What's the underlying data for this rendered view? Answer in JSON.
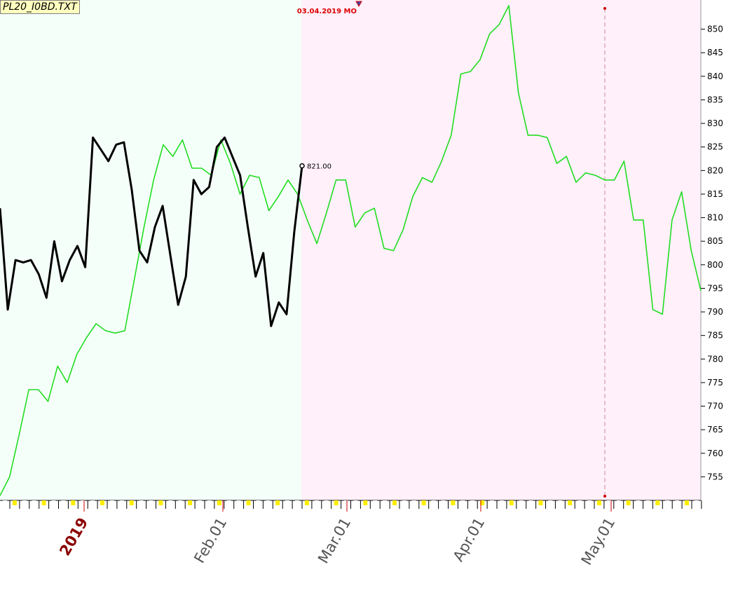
{
  "file_tag": "PL20_I0BD.TXT",
  "chart_data": {
    "type": "line",
    "ylim": [
      750,
      855
    ],
    "y_ticks": [
      755,
      760,
      765,
      770,
      775,
      780,
      785,
      790,
      795,
      800,
      805,
      810,
      815,
      820,
      825,
      830,
      835,
      840,
      845,
      850
    ],
    "x_labels": [
      {
        "text": "2019",
        "date": "2019-01-01",
        "style": "year"
      },
      {
        "text": "Feb.01",
        "date": "2019-02-01",
        "style": "month"
      },
      {
        "text": "Mar.01",
        "date": "2019-03-01",
        "style": "month"
      },
      {
        "text": "Apr.01",
        "date": "2019-04-01",
        "style": "month"
      },
      {
        "text": "May.01",
        "date": "2019-05-01",
        "style": "month"
      }
    ],
    "x_range": [
      "2018-12-19",
      "2019-05-21"
    ],
    "background_regions": [
      {
        "from": "2018-12-19",
        "to": "2019-02-22",
        "color": "#f5fffa"
      },
      {
        "from": "2019-02-22",
        "to": "2019-05-21",
        "color": "#fff0fa"
      }
    ],
    "marker_line": {
      "date": "2019-04-30",
      "color": "#cc0000"
    },
    "peak_annotation": {
      "text": "03.04.2019 MO",
      "date": "2019-03-04",
      "value": 856,
      "color": "#dd0000"
    },
    "end_label": {
      "text": "821.00",
      "date": "2019-02-22",
      "value": 821.0
    },
    "series": [
      {
        "color": "#22dd22",
        "points": [
          [
            "2018-12-19",
            751
          ],
          [
            "2018-12-21",
            755
          ],
          [
            "2018-12-23",
            764
          ],
          [
            "2018-12-26",
            773.5
          ],
          [
            "2018-12-28",
            773.5
          ],
          [
            "2018-12-30",
            771
          ],
          [
            "2019-01-01",
            778.5
          ],
          [
            "2019-01-03",
            775
          ],
          [
            "2019-01-07",
            781
          ],
          [
            "2019-01-10",
            784.5
          ],
          [
            "2019-01-12",
            787.5
          ],
          [
            "2019-01-15",
            786
          ],
          [
            "2019-01-17",
            785.5
          ],
          [
            "2019-01-19",
            786
          ],
          [
            "2019-01-21",
            797
          ],
          [
            "2019-01-22",
            808
          ],
          [
            "2019-01-25",
            818
          ],
          [
            "2019-01-28",
            825.5
          ],
          [
            "2019-01-30",
            823
          ],
          [
            "2019-02-01",
            826.5
          ],
          [
            "2019-02-04",
            820.5
          ],
          [
            "2019-02-06",
            820.5
          ],
          [
            "2019-02-08",
            819
          ],
          [
            "2019-02-10",
            826.5
          ],
          [
            "2019-02-12",
            821.5
          ],
          [
            "2019-02-15",
            815
          ],
          [
            "2019-02-16",
            819
          ],
          [
            "2019-02-18",
            818.5
          ],
          [
            "2019-02-19",
            811.5
          ],
          [
            "2019-02-21",
            814.5
          ],
          [
            "2019-02-23",
            818
          ],
          [
            "2019-02-25",
            815
          ],
          [
            "2019-02-27",
            809.5
          ],
          [
            "2019-03-01",
            804.5
          ],
          [
            "2019-03-03",
            811
          ],
          [
            "2019-03-05",
            818
          ],
          [
            "2019-03-06",
            818
          ],
          [
            "2019-03-08",
            808
          ],
          [
            "2019-03-10",
            811
          ],
          [
            "2019-03-13",
            812
          ],
          [
            "2019-03-15",
            803.5
          ],
          [
            "2019-03-17",
            803
          ],
          [
            "2019-03-20",
            807.5
          ],
          [
            "2019-03-23",
            814.5
          ],
          [
            "2019-03-25",
            818.5
          ],
          [
            "2019-03-27",
            817.5
          ],
          [
            "2019-03-30",
            822
          ],
          [
            "2019-04-01",
            827.5
          ],
          [
            "2019-04-03",
            840.5
          ],
          [
            "2019-04-05",
            841
          ],
          [
            "2019-04-07",
            843.5
          ],
          [
            "2019-04-08",
            849
          ],
          [
            "2019-04-10",
            851
          ],
          [
            "2019-04-12",
            855
          ],
          [
            "2019-04-14",
            836.5
          ],
          [
            "2019-04-16",
            827.5
          ],
          [
            "2019-04-18",
            827.5
          ],
          [
            "2019-04-19",
            827
          ],
          [
            "2019-04-23",
            821.5
          ],
          [
            "2019-04-24",
            823
          ],
          [
            "2019-04-26",
            817.5
          ],
          [
            "2019-04-28",
            819.5
          ],
          [
            "2019-04-30",
            819
          ],
          [
            "2019-05-01",
            818
          ],
          [
            "2019-05-02",
            818
          ],
          [
            "2019-05-04",
            822
          ],
          [
            "2019-05-06",
            809.5
          ],
          [
            "2019-05-07",
            809.5
          ],
          [
            "2019-05-10",
            790.5
          ],
          [
            "2019-05-12",
            789.5
          ],
          [
            "2019-05-14",
            809.5
          ],
          [
            "2019-05-16",
            815.5
          ],
          [
            "2019-05-18",
            803
          ],
          [
            "2019-05-21",
            794.5
          ]
        ]
      },
      {
        "color": "#000000",
        "points": [
          [
            "2018-12-19",
            812
          ],
          [
            "2018-12-21",
            790.5
          ],
          [
            "2018-12-24",
            801
          ],
          [
            "2018-12-25",
            800.5
          ],
          [
            "2018-12-27",
            801
          ],
          [
            "2018-12-30",
            798
          ],
          [
            "2019-01-01",
            793
          ],
          [
            "2019-01-03",
            805
          ],
          [
            "2019-01-05",
            796.5
          ],
          [
            "2019-01-09",
            801
          ],
          [
            "2019-01-12",
            804
          ],
          [
            "2019-01-14",
            799.5
          ],
          [
            "2019-01-15",
            827
          ],
          [
            "2019-01-18",
            824.5
          ],
          [
            "2019-01-20",
            822
          ],
          [
            "2019-01-22",
            825.5
          ],
          [
            "2019-01-23",
            826
          ],
          [
            "2019-01-25",
            816
          ],
          [
            "2019-01-27",
            803
          ],
          [
            "2019-01-28",
            800.5
          ],
          [
            "2019-01-30",
            808
          ],
          [
            "2019-01-31",
            812.5
          ],
          [
            "2019-02-02",
            802
          ],
          [
            "2019-02-06",
            791.5
          ],
          [
            "2019-02-08",
            797.5
          ],
          [
            "2019-02-10",
            818
          ],
          [
            "2019-02-14",
            815
          ],
          [
            "2019-02-17",
            816.5
          ],
          [
            "2019-02-19",
            825
          ],
          [
            "2019-02-20",
            827
          ],
          [
            "2019-02-24",
            823
          ],
          [
            "2019-02-26",
            819
          ],
          [
            "2019-02-28",
            808
          ],
          [
            "2019-03-01",
            797.5
          ],
          [
            "2019-03-02",
            802.5
          ],
          [
            "2019-03-06",
            787
          ],
          [
            "2019-03-08",
            792
          ],
          [
            "2019-03-09",
            789.5
          ],
          [
            "2019-03-10",
            807
          ],
          [
            "2019-03-14",
            821
          ]
        ]
      }
    ]
  }
}
